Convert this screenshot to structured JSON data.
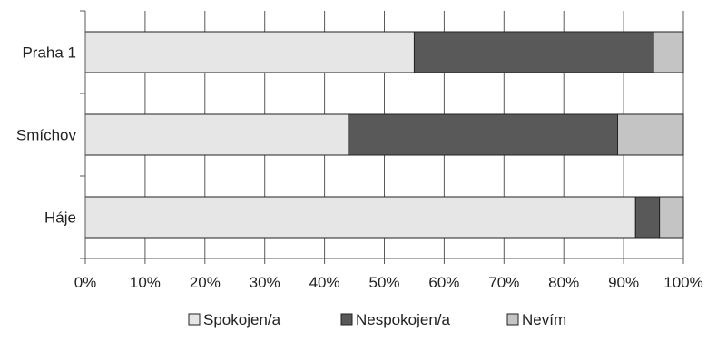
{
  "chart_data": {
    "type": "bar",
    "orientation": "horizontal",
    "stacked": true,
    "normalized": true,
    "categories": [
      "Praha 1",
      "Smíchov",
      "Háje"
    ],
    "series": [
      {
        "name": "Spokojen/a",
        "values": [
          55,
          44,
          92
        ],
        "color": "#e6e6e6"
      },
      {
        "name": "Nespokojen/a",
        "values": [
          40,
          45,
          4
        ],
        "color": "#595959"
      },
      {
        "name": "Nevím",
        "values": [
          5,
          11,
          4
        ],
        "color": "#c4c4c4"
      }
    ],
    "x_ticks": [
      "0%",
      "10%",
      "20%",
      "30%",
      "40%",
      "50%",
      "60%",
      "70%",
      "80%",
      "90%",
      "100%"
    ],
    "xlim": [
      0,
      100
    ],
    "title": "",
    "xlabel": "",
    "ylabel": "",
    "grid": true,
    "legend_position": "bottom"
  }
}
